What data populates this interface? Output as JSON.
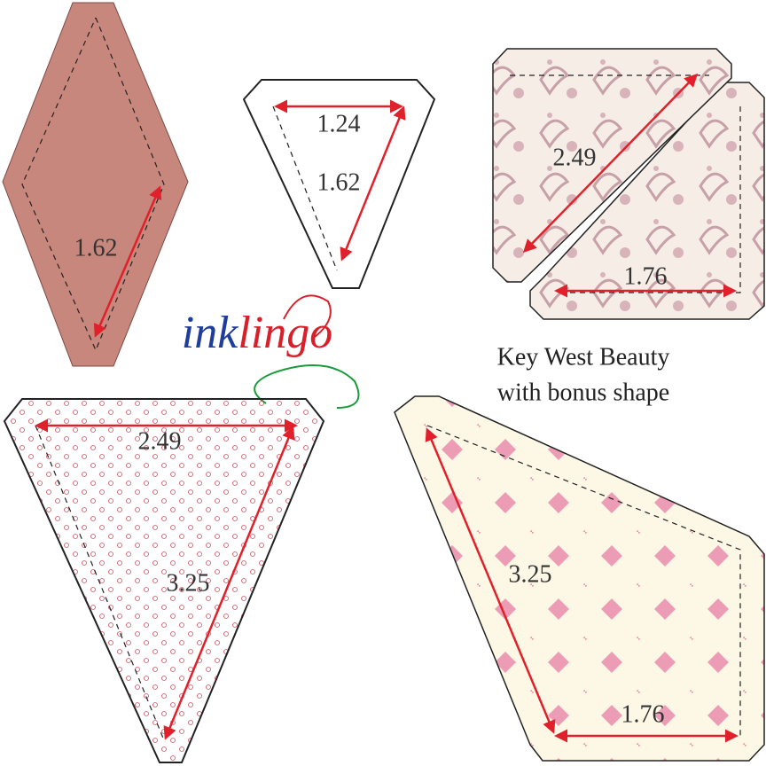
{
  "shapes": [
    {
      "labels": [
        "1.62"
      ]
    },
    {
      "labels": [
        "1.24",
        "1.62"
      ]
    },
    {
      "labels": [
        "2.49",
        "1.76"
      ]
    },
    {
      "labels": [
        "2.49",
        "3.25"
      ]
    },
    {
      "labels": [
        "3.25",
        "1.76"
      ]
    }
  ],
  "logo": {
    "parts": [
      "ink",
      "lingo"
    ]
  },
  "caption": [
    "Key West Beauty",
    "with bonus shape"
  ]
}
